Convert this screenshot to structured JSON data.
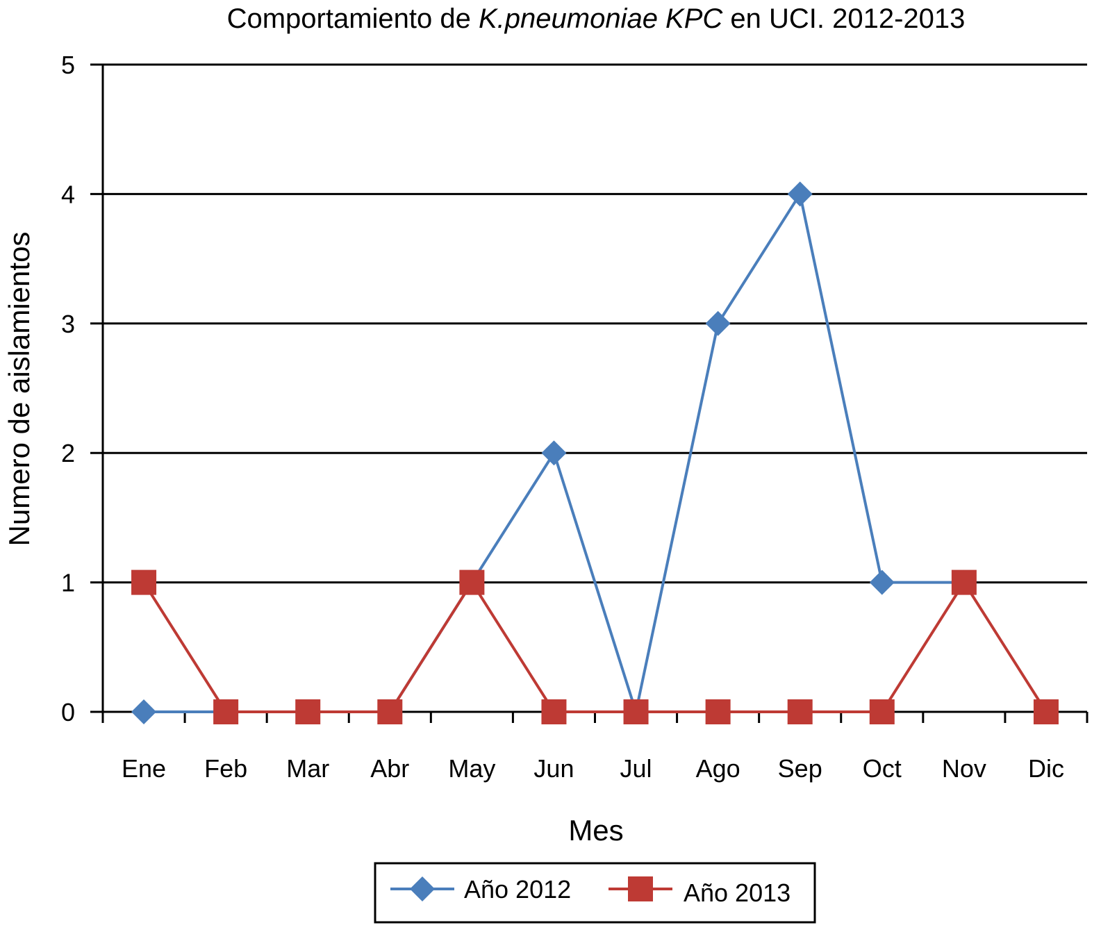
{
  "chart_data": {
    "type": "line",
    "title": {
      "prefix": "Comportamiento de ",
      "italic": "K.pneumoniae KPC",
      "suffix": " en UCI. 2012-2013"
    },
    "xlabel": "Mes",
    "ylabel": "Numero de aislamientos",
    "categories": [
      "Ene",
      "Feb",
      "Mar",
      "Abr",
      "May",
      "Jun",
      "Jul",
      "Ago",
      "Sep",
      "Oct",
      "Nov",
      "Dic"
    ],
    "ylim": [
      0,
      5
    ],
    "yticks": [
      0,
      1,
      2,
      3,
      4,
      5
    ],
    "grid": true,
    "legend_position": "bottom",
    "series": [
      {
        "name": "Año 2012",
        "values": [
          0,
          0,
          0,
          0,
          1,
          2,
          0,
          3,
          4,
          1,
          1,
          null
        ],
        "color": "#4a7ebb",
        "marker": "diamond"
      },
      {
        "name": "Año 2013",
        "values": [
          1,
          0,
          0,
          0,
          1,
          0,
          0,
          0,
          0,
          0,
          1,
          0
        ],
        "color": "#be3a34",
        "marker": "square"
      }
    ]
  }
}
